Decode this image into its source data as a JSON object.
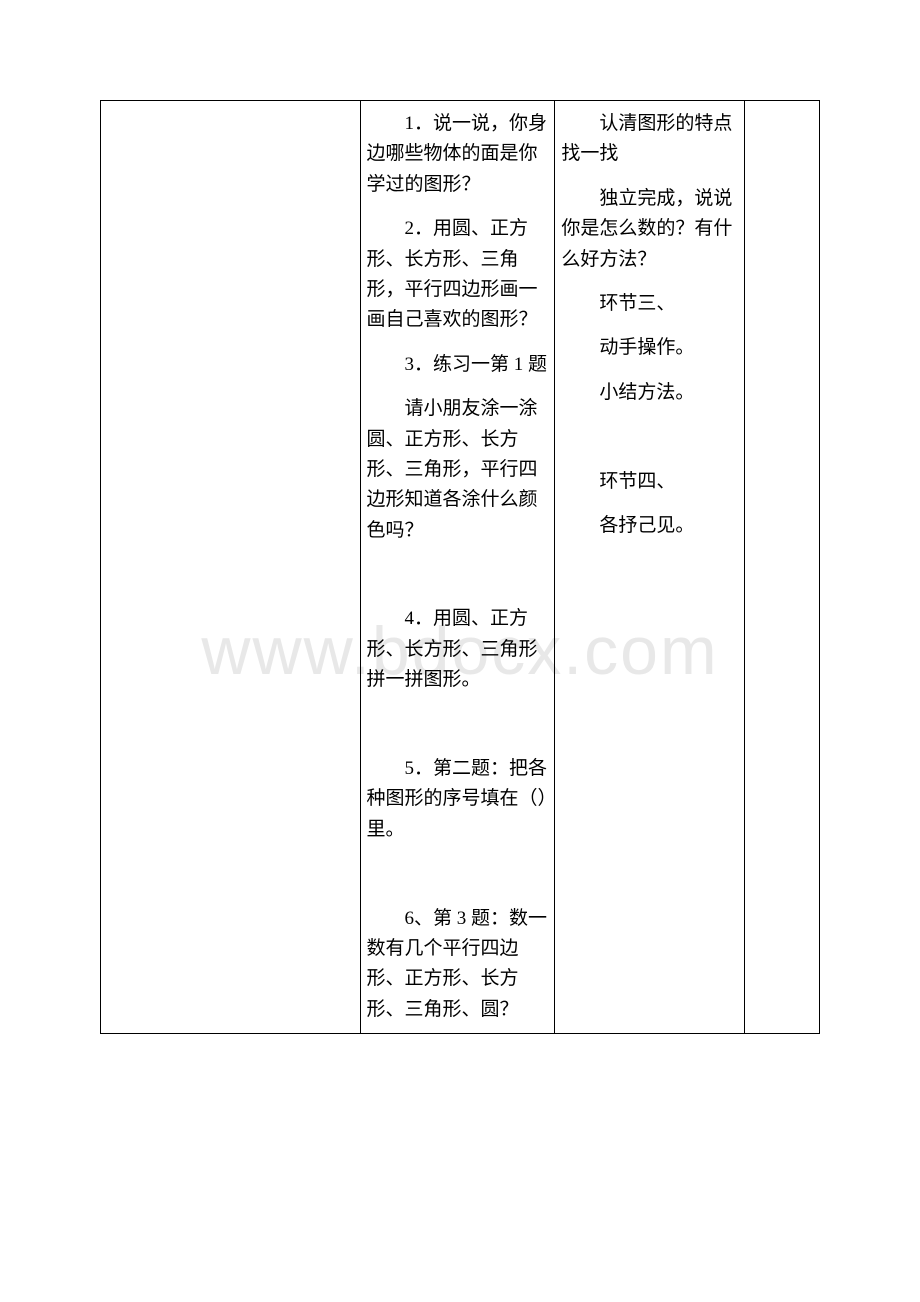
{
  "watermark": "www.bdocx.com",
  "table": {
    "columns": {
      "col1_width": 260,
      "col2_width": 195,
      "col3_width": 190,
      "col4_width": 75
    },
    "border_color": "#000000",
    "text_color": "#000000",
    "font_size": 19,
    "col2": {
      "p1": "1．说一说，你身边哪些物体的面是你学过的图形？",
      "p2": "2．用圆、正方形、长方形、三角形，平行四边形画一画自己喜欢的图形？",
      "p3": "3．练习一第 1 题",
      "p4": "请小朋友涂一涂圆、正方形、长方形、三角形，平行四边形知道各涂什么颜色吗？",
      "p5": "4．用圆、正方形、长方形、三角形拼一拼图形。",
      "p6": "5．第二题：把各种图形的序号填在（）里。",
      "p7": "6、第 3 题：数一数有几个平行四边形、正方形、长方形、三角形、圆？"
    },
    "col3": {
      "p1": "认清图形的特点找一找",
      "p2": "独立完成，说说你是怎么数的？有什么好方法？",
      "p3": "环节三、",
      "p4": "动手操作。",
      "p5": "小结方法。",
      "p6": "环节四、",
      "p7": "各抒己见。"
    }
  },
  "colors": {
    "background": "#ffffff",
    "watermark": "#e8e8e8",
    "border": "#000000",
    "text": "#000000"
  }
}
